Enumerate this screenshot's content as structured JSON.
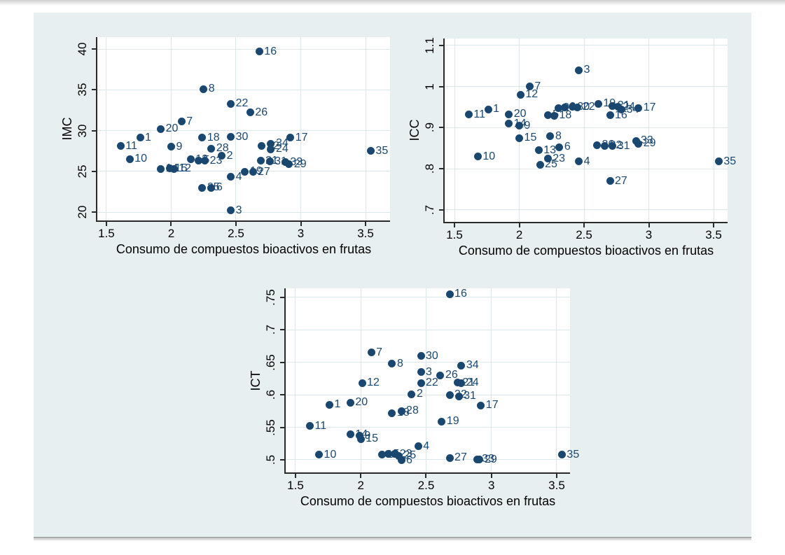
{
  "figure": {
    "shared_xlabel": "Consumo de compuestos bioactivos en frutas"
  },
  "styles": {
    "canvas_bg": "#e8eff1",
    "plot_bg": "#ffffff",
    "grid_color": "#dce7ea",
    "axis_color": "#2a2a2a",
    "marker_color": "#1a476f",
    "point_label_color": "#1a476f",
    "tick_text_color": "#000000"
  },
  "chart_data": [
    {
      "type": "scatter",
      "title": "",
      "ylabel": "IMC",
      "xlabel": "Consumo de compuestos bioactivos en frutas",
      "grid": true,
      "legend": "none",
      "xticks": [
        1.5,
        2,
        2.5,
        3,
        3.5
      ],
      "xtick_labels": [
        "1.5",
        "2",
        "2.5",
        "3",
        "3.5"
      ],
      "yticks": [
        20,
        25,
        30,
        35,
        40
      ],
      "ytick_labels": [
        "20",
        "25",
        "30",
        "35",
        "40"
      ],
      "xlim": [
        1.43,
        3.689
      ],
      "ylim": [
        18.97,
        41.46
      ],
      "points": [
        [
          "1",
          1.76,
          29.1
        ],
        [
          "2",
          2.39,
          26.9
        ],
        [
          "3",
          2.46,
          20.2
        ],
        [
          "4",
          2.46,
          24.3
        ],
        [
          "5",
          2.21,
          26.32
        ],
        [
          "6",
          2.31,
          23.0
        ],
        [
          "7",
          2.08,
          31.1
        ],
        [
          "8",
          2.25,
          35.1
        ],
        [
          "9",
          2.0,
          28.0
        ],
        [
          "10",
          1.68,
          26.5
        ],
        [
          "11",
          1.61,
          28.1
        ],
        [
          "12",
          2.02,
          25.28
        ],
        [
          "13",
          2.15,
          26.45
        ],
        [
          "14",
          1.92,
          25.3
        ],
        [
          "15",
          1.99,
          25.35
        ],
        [
          "16",
          2.68,
          39.7
        ],
        [
          "17",
          2.92,
          29.1
        ],
        [
          "18",
          2.24,
          29.1
        ],
        [
          "19",
          2.57,
          24.95
        ],
        [
          "20",
          1.92,
          30.2
        ],
        [
          "21",
          2.69,
          26.3
        ],
        [
          "22",
          2.46,
          33.3
        ],
        [
          "23",
          2.26,
          26.28
        ],
        [
          "24",
          2.77,
          27.7
        ],
        [
          "25",
          2.24,
          23.0
        ],
        [
          "26",
          2.61,
          32.2
        ],
        [
          "27",
          2.63,
          24.9
        ],
        [
          "28",
          2.31,
          27.8
        ],
        [
          "29",
          2.91,
          25.85
        ],
        [
          "30",
          2.46,
          29.2
        ],
        [
          "31",
          2.76,
          26.2
        ],
        [
          "32",
          2.7,
          28.1
        ],
        [
          "33",
          2.88,
          26.1
        ],
        [
          "34",
          2.77,
          28.4
        ],
        [
          "35",
          3.54,
          27.5
        ]
      ]
    },
    {
      "type": "scatter",
      "title": "",
      "ylabel": "ICC",
      "xlabel": "Consumo de compuestos bioactivos en frutas",
      "grid": true,
      "legend": "none",
      "xticks": [
        1.5,
        2,
        2.5,
        3,
        3.5
      ],
      "xtick_labels": [
        "1.5",
        "2",
        "2.5",
        "3",
        "3.5"
      ],
      "yticks": [
        0.7,
        0.8,
        0.9,
        1,
        1.1
      ],
      "ytick_labels": [
        ".7",
        ".8",
        ".9",
        "1",
        "1.1"
      ],
      "xlim": [
        1.424,
        3.608
      ],
      "ylim": [
        0.671,
        1.117
      ],
      "points": [
        [
          "1",
          1.76,
          0.945
        ],
        [
          "2",
          2.35,
          0.95
        ],
        [
          "3",
          2.46,
          1.04
        ],
        [
          "4",
          2.46,
          0.818
        ],
        [
          "5",
          2.22,
          0.931
        ],
        [
          "6",
          2.31,
          0.853
        ],
        [
          "7",
          2.08,
          1.0
        ],
        [
          "8",
          2.24,
          0.879
        ],
        [
          "9",
          2.0,
          0.905
        ],
        [
          "10",
          1.68,
          0.83
        ],
        [
          "11",
          1.61,
          0.932
        ],
        [
          "12",
          2.01,
          0.98
        ],
        [
          "13",
          2.15,
          0.845
        ],
        [
          "14",
          1.92,
          0.91
        ],
        [
          "15",
          2.0,
          0.875
        ],
        [
          "16",
          2.7,
          0.93
        ],
        [
          "17",
          2.92,
          0.948
        ],
        [
          "18",
          2.27,
          0.929
        ],
        [
          "19",
          2.61,
          0.958
        ],
        [
          "20",
          1.92,
          0.933
        ],
        [
          "21",
          2.72,
          0.953
        ],
        [
          "22",
          2.45,
          0.95
        ],
        [
          "23",
          2.22,
          0.825
        ],
        [
          "24",
          2.76,
          0.951
        ],
        [
          "25",
          2.16,
          0.81
        ],
        [
          "26",
          2.6,
          0.858
        ],
        [
          "27",
          2.7,
          0.77
        ],
        [
          "28",
          2.3,
          0.948
        ],
        [
          "29",
          2.92,
          0.861
        ],
        [
          "30",
          2.41,
          0.951
        ],
        [
          "31",
          2.72,
          0.855
        ],
        [
          "32",
          2.66,
          0.856
        ],
        [
          "33",
          2.9,
          0.868
        ],
        [
          "34",
          2.79,
          0.944
        ],
        [
          "35",
          3.54,
          0.818
        ]
      ]
    },
    {
      "type": "scatter",
      "title": "",
      "ylabel": "ICT",
      "xlabel": "Consumo de compuestos bioactivos en frutas",
      "grid": true,
      "legend": "none",
      "xticks": [
        1.5,
        2,
        2.5,
        3,
        3.5
      ],
      "xtick_labels": [
        "1.5",
        "2",
        "2.5",
        "3",
        "3.5"
      ],
      "yticks": [
        0.5,
        0.55,
        0.6,
        0.65,
        0.7,
        0.75
      ],
      "ytick_labels": [
        ".5",
        ".55",
        ".6",
        ".65",
        ".7",
        ".75"
      ],
      "xlim": [
        1.425,
        3.602
      ],
      "ylim": [
        0.4806,
        0.764
      ],
      "points": [
        [
          "1",
          1.76,
          0.585
        ],
        [
          "2",
          2.39,
          0.601
        ],
        [
          "3",
          2.46,
          0.635
        ],
        [
          "4",
          2.44,
          0.521
        ],
        [
          "5",
          2.21,
          0.509
        ],
        [
          "6",
          2.31,
          0.499
        ],
        [
          "7",
          2.08,
          0.665
        ],
        [
          "8",
          2.24,
          0.648
        ],
        [
          "9",
          1.99,
          0.537
        ],
        [
          "10",
          1.68,
          0.508
        ],
        [
          "11",
          1.61,
          0.552
        ],
        [
          "12",
          2.01,
          0.618
        ],
        [
          "13",
          2.16,
          0.508
        ],
        [
          "14",
          1.92,
          0.539
        ],
        [
          "15",
          2.0,
          0.532
        ],
        [
          "16",
          2.68,
          0.755
        ],
        [
          "17",
          2.92,
          0.584
        ],
        [
          "18",
          2.24,
          0.572
        ],
        [
          "19",
          2.62,
          0.559
        ],
        [
          "20",
          1.92,
          0.588
        ],
        [
          "21",
          2.74,
          0.619
        ],
        [
          "22",
          2.46,
          0.618
        ],
        [
          "23",
          2.26,
          0.509
        ],
        [
          "24",
          2.77,
          0.618
        ],
        [
          "25",
          2.29,
          0.506
        ],
        [
          "26",
          2.61,
          0.63
        ],
        [
          "27",
          2.68,
          0.503
        ],
        [
          "28",
          2.31,
          0.575
        ],
        [
          "29",
          2.91,
          0.5
        ],
        [
          "30",
          2.46,
          0.66
        ],
        [
          "31",
          2.75,
          0.598
        ],
        [
          "32",
          2.68,
          0.6
        ],
        [
          "33",
          2.89,
          0.501
        ],
        [
          "34",
          2.77,
          0.645
        ],
        [
          "35",
          3.54,
          0.508
        ]
      ]
    }
  ]
}
